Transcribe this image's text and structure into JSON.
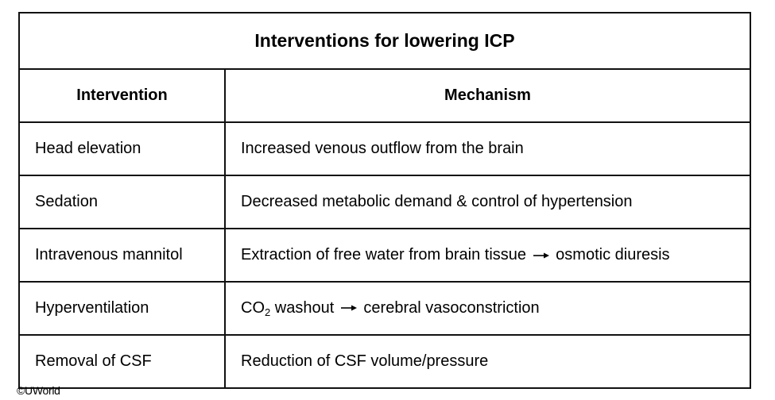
{
  "table": {
    "title": "Interventions for lowering ICP",
    "headers": [
      "Intervention",
      "Mechanism"
    ],
    "rows": [
      {
        "intervention": "Head elevation",
        "mechanism": "Increased venous outflow from the brain"
      },
      {
        "intervention": "Sedation",
        "mechanism": "Decreased metabolic demand & control of hypertension"
      },
      {
        "intervention": "Intravenous mannitol",
        "mechanism_pre": "Extraction of free water from brain tissue",
        "mechanism_post": "osmotic diuresis"
      },
      {
        "intervention": "Hyperventilation",
        "mechanism_co": "CO",
        "mechanism_sub": "2",
        "mechanism_pre": " washout",
        "mechanism_post": "cerebral vasoconstriction"
      },
      {
        "intervention": "Removal of CSF",
        "mechanism": "Reduction of CSF volume/pressure"
      }
    ]
  },
  "footer": {
    "copyright": "©UWorld"
  },
  "icons": {
    "arrow": "right-arrow-icon"
  }
}
